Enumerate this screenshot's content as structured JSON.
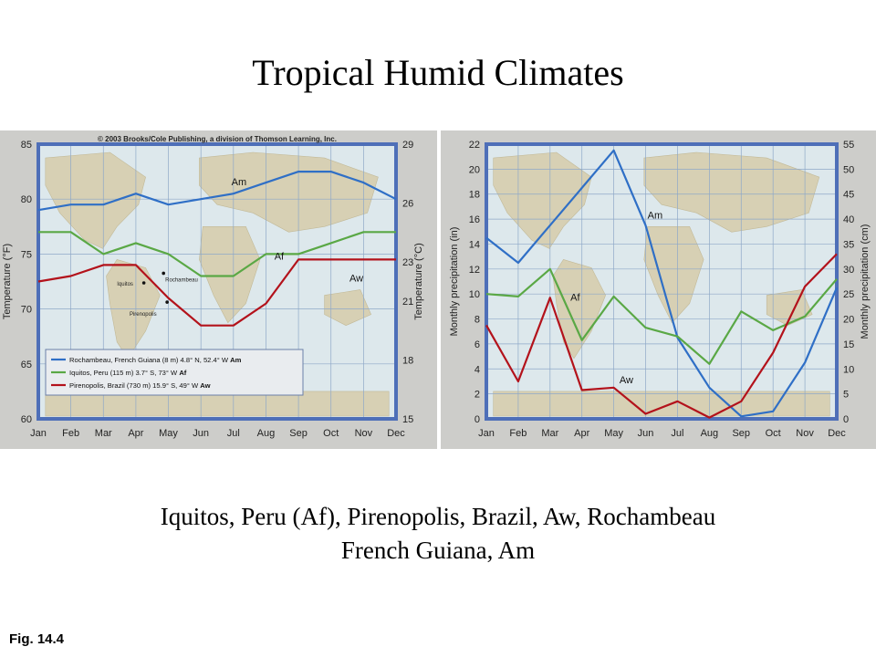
{
  "slide": {
    "title": "Tropical Humid Climates",
    "caption_line1": "Iquitos, Peru (Af), Pirenopolis, Brazil, Aw,  Rochambeau",
    "caption_line2": "French Guiana, Am",
    "figure_label": "Fig. 14.4"
  },
  "colors": {
    "am": "#2f6fc6",
    "af": "#5aa845",
    "aw": "#b3121b",
    "frame": "#4e6fb8",
    "plot_bg": "#dde8ec",
    "panel_bg": "#cdcdca"
  },
  "chart_data": [
    {
      "type": "line",
      "copyright": "© 2003 Brooks/Cole Publishing, a division of Thomson Learning, Inc.",
      "categories": [
        "Jan",
        "Feb",
        "Mar",
        "Apr",
        "May",
        "Jun",
        "Jul",
        "Aug",
        "Sep",
        "Oct",
        "Nov",
        "Dec"
      ],
      "ylabel_left": "Temperature (°F)",
      "ylabel_right": "Temperature (°C)",
      "ylim_left": [
        60,
        85
      ],
      "ylim_right": [
        15,
        29
      ],
      "yticks_left": [
        60,
        65,
        70,
        75,
        80,
        85
      ],
      "yticks_right": [
        15,
        18,
        21,
        23,
        26,
        29
      ],
      "series": [
        {
          "name": "Am",
          "color": "#2f6fc6",
          "values": [
            79,
            79.5,
            79.5,
            80.5,
            79.5,
            80,
            80.5,
            81.5,
            82.5,
            82.5,
            81.5,
            80
          ]
        },
        {
          "name": "Af",
          "color": "#5aa845",
          "values": [
            77,
            77,
            75,
            76,
            75,
            73,
            73,
            75,
            75,
            76,
            77,
            77
          ]
        },
        {
          "name": "Aw",
          "color": "#b3121b",
          "values": [
            72.5,
            73,
            74,
            74,
            71,
            68.5,
            68.5,
            70.5,
            74.5,
            74.5,
            74.5,
            74.5
          ]
        }
      ],
      "series_labels": [
        "Am",
        "Af",
        "Aw"
      ],
      "map_labels": {
        "rochambeau": "Rochambeau",
        "iquitos": "Iquitos",
        "pirenopolis": "Pirenopolis"
      },
      "legend": [
        {
          "text": "Rochambeau, French Guiana (8 m) 4.8° N, 52.4° W ",
          "code": "Am",
          "color": "#2f6fc6"
        },
        {
          "text": "Iquitos, Peru (115 m) 3.7° S, 73° W ",
          "code": "Af",
          "color": "#5aa845"
        },
        {
          "text": "Pirenopolis, Brazil (730 m) 15.9° S, 49° W ",
          "code": "Aw",
          "color": "#b3121b"
        }
      ],
      "legend_position": "bottom-left",
      "grid": true
    },
    {
      "type": "line",
      "categories": [
        "Jan",
        "Feb",
        "Mar",
        "Apr",
        "May",
        "Jun",
        "Jul",
        "Aug",
        "Sep",
        "Oct",
        "Nov",
        "Dec"
      ],
      "ylabel_left": "Monthly precipitation (in)",
      "ylabel_right": "Monthly precipitation (cm)",
      "ylim_left": [
        0,
        22
      ],
      "ylim_right": [
        0,
        55
      ],
      "yticks_left": [
        0,
        2,
        4,
        6,
        8,
        10,
        12,
        14,
        16,
        18,
        20,
        22
      ],
      "yticks_right": [
        0,
        5,
        10,
        15,
        20,
        25,
        30,
        35,
        40,
        45,
        50,
        55
      ],
      "series": [
        {
          "name": "Am",
          "color": "#2f6fc6",
          "values": [
            14.5,
            12.5,
            15.5,
            18.5,
            21.5,
            15.5,
            6.5,
            2.5,
            0.2,
            0.6,
            4.5,
            10.5
          ]
        },
        {
          "name": "Af",
          "color": "#5aa845",
          "values": [
            10,
            9.8,
            12,
            6.3,
            9.8,
            7.3,
            6.6,
            4.4,
            8.6,
            7.1,
            8.2,
            11.2
          ]
        },
        {
          "name": "Aw",
          "color": "#b3121b",
          "values": [
            7.5,
            3,
            9.7,
            2.3,
            2.5,
            0.4,
            1.4,
            0.1,
            1.4,
            5.3,
            10.6,
            13.2
          ]
        }
      ],
      "series_labels": [
        "Am",
        "Af",
        "Aw"
      ],
      "grid": true
    }
  ]
}
